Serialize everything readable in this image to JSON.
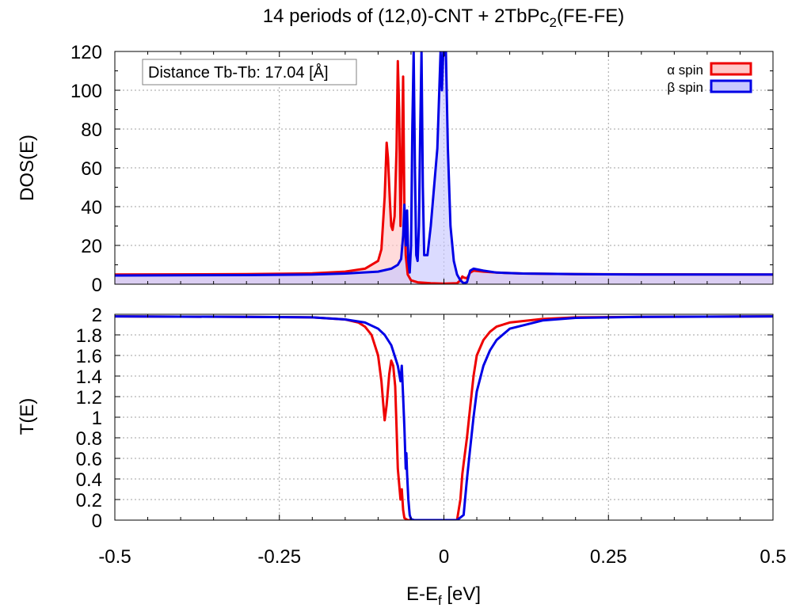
{
  "title": {
    "prefix": "14 periods of (12,0)-CNT + 2TbPc",
    "subscript": "2",
    "suffix": "(FE-FE)"
  },
  "annotation": "Distance Tb-Tb: 17.04 [Å]",
  "xlabel": {
    "main": "E-E",
    "subscript": "f",
    "unit": " [eV]"
  },
  "colors": {
    "alpha": "#ee0000",
    "alpha_fill": "#ffc8c8",
    "beta": "#0000e6",
    "beta_fill": "#c8c8ff",
    "overlap_fill": "#c8a0d2",
    "grid": "#a0a0a0"
  },
  "legend": {
    "position": "top-right",
    "alpha": "α spin",
    "beta": "β spin"
  },
  "chart_data": [
    {
      "type": "area",
      "ylabel": "DOS(E)",
      "xlim": [
        -0.5,
        0.5
      ],
      "ylim": [
        0,
        120
      ],
      "xticks": [
        -0.5,
        -0.25,
        0,
        0.25,
        0.5
      ],
      "yticks": [
        0,
        20,
        40,
        60,
        80,
        100,
        120
      ],
      "ytick_labels": [
        "0",
        "20",
        "40",
        "60",
        "80",
        "100",
        "120"
      ],
      "grid": true,
      "series": [
        {
          "name": "α spin",
          "points": [
            [
              -0.5,
              5
            ],
            [
              -0.3,
              5.2
            ],
            [
              -0.2,
              5.6
            ],
            [
              -0.15,
              6.5
            ],
            [
              -0.12,
              8
            ],
            [
              -0.1,
              12
            ],
            [
              -0.095,
              18
            ],
            [
              -0.09,
              45
            ],
            [
              -0.087,
              73
            ],
            [
              -0.085,
              65
            ],
            [
              -0.082,
              42
            ],
            [
              -0.08,
              30
            ],
            [
              -0.078,
              28
            ],
            [
              -0.075,
              35
            ],
            [
              -0.072,
              70
            ],
            [
              -0.07,
              115
            ],
            [
              -0.068,
              90
            ],
            [
              -0.066,
              30
            ],
            [
              -0.064,
              60
            ],
            [
              -0.062,
              107
            ],
            [
              -0.06,
              40
            ],
            [
              -0.058,
              15
            ],
            [
              -0.055,
              5
            ],
            [
              -0.05,
              2
            ],
            [
              -0.04,
              1
            ],
            [
              -0.02,
              0.5
            ],
            [
              0,
              0.3
            ],
            [
              0.02,
              0.5
            ],
            [
              0.025,
              2
            ],
            [
              0.028,
              4
            ],
            [
              0.03,
              3.5
            ],
            [
              0.035,
              3
            ],
            [
              0.04,
              6
            ],
            [
              0.045,
              7
            ],
            [
              0.06,
              6.5
            ],
            [
              0.08,
              6
            ],
            [
              0.12,
              5.5
            ],
            [
              0.2,
              5.2
            ],
            [
              0.3,
              5.1
            ],
            [
              0.5,
              5
            ]
          ]
        },
        {
          "name": "β spin",
          "points": [
            [
              -0.5,
              4.5
            ],
            [
              -0.3,
              4.7
            ],
            [
              -0.2,
              5
            ],
            [
              -0.15,
              5.5
            ],
            [
              -0.1,
              6.5
            ],
            [
              -0.08,
              8
            ],
            [
              -0.07,
              10
            ],
            [
              -0.065,
              13
            ],
            [
              -0.062,
              25
            ],
            [
              -0.06,
              41
            ],
            [
              -0.058,
              20
            ],
            [
              -0.056,
              38
            ],
            [
              -0.054,
              12
            ],
            [
              -0.052,
              6
            ],
            [
              -0.05,
              20
            ],
            [
              -0.048,
              80
            ],
            [
              -0.046,
              120
            ],
            [
              -0.044,
              60
            ],
            [
              -0.042,
              15
            ],
            [
              -0.04,
              12
            ],
            [
              -0.038,
              30
            ],
            [
              -0.036,
              80
            ],
            [
              -0.034,
              120
            ],
            [
              -0.032,
              50
            ],
            [
              -0.03,
              15
            ],
            [
              -0.025,
              15
            ],
            [
              -0.02,
              30
            ],
            [
              -0.01,
              70
            ],
            [
              -0.005,
              120
            ],
            [
              -0.003,
              100
            ],
            [
              -0.001,
              120
            ],
            [
              0,
              118
            ],
            [
              0.003,
              120
            ],
            [
              0.006,
              70
            ],
            [
              0.01,
              30
            ],
            [
              0.015,
              12
            ],
            [
              0.02,
              5
            ],
            [
              0.025,
              2
            ],
            [
              0.03,
              0.5
            ],
            [
              0.035,
              1
            ],
            [
              0.04,
              7
            ],
            [
              0.045,
              8
            ],
            [
              0.06,
              7
            ],
            [
              0.08,
              6
            ],
            [
              0.12,
              5.5
            ],
            [
              0.2,
              5.2
            ],
            [
              0.3,
              5
            ],
            [
              0.5,
              5
            ]
          ]
        }
      ]
    },
    {
      "type": "line",
      "ylabel": "T(E)",
      "xlabel": "E-Ef [eV]",
      "xlim": [
        -0.5,
        0.5
      ],
      "ylim": [
        0,
        2
      ],
      "xticks": [
        -0.5,
        -0.25,
        0,
        0.25,
        0.5
      ],
      "xtick_labels": [
        "-0.5",
        "-0.25",
        "0",
        "0.25",
        "0.5"
      ],
      "yticks": [
        0,
        0.2,
        0.4,
        0.6,
        0.8,
        1,
        1.2,
        1.4,
        1.6,
        1.8,
        2
      ],
      "ytick_labels": [
        "0",
        "0.2",
        "0.4",
        "0.6",
        "0.8",
        "1",
        "1.2",
        "1.4",
        "1.6",
        "1.8",
        "2"
      ],
      "grid": true,
      "series": [
        {
          "name": "α spin",
          "points": [
            [
              -0.5,
              1.98
            ],
            [
              -0.3,
              1.975
            ],
            [
              -0.2,
              1.97
            ],
            [
              -0.15,
              1.95
            ],
            [
              -0.13,
              1.92
            ],
            [
              -0.12,
              1.88
            ],
            [
              -0.11,
              1.8
            ],
            [
              -0.1,
              1.6
            ],
            [
              -0.095,
              1.35
            ],
            [
              -0.092,
              1.12
            ],
            [
              -0.09,
              0.97
            ],
            [
              -0.087,
              1.12
            ],
            [
              -0.083,
              1.42
            ],
            [
              -0.08,
              1.55
            ],
            [
              -0.077,
              1.5
            ],
            [
              -0.074,
              1.3
            ],
            [
              -0.072,
              0.9
            ],
            [
              -0.07,
              0.5
            ],
            [
              -0.068,
              0.35
            ],
            [
              -0.066,
              0.2
            ],
            [
              -0.064,
              0.3
            ],
            [
              -0.062,
              0.1
            ],
            [
              -0.06,
              0.02
            ],
            [
              -0.055,
              0
            ],
            [
              0,
              0
            ],
            [
              0.02,
              0
            ],
            [
              0.025,
              0.2
            ],
            [
              0.028,
              0.45
            ],
            [
              0.03,
              0.55
            ],
            [
              0.035,
              0.8
            ],
            [
              0.04,
              1.1
            ],
            [
              0.045,
              1.4
            ],
            [
              0.05,
              1.6
            ],
            [
              0.06,
              1.75
            ],
            [
              0.07,
              1.83
            ],
            [
              0.08,
              1.88
            ],
            [
              0.1,
              1.92
            ],
            [
              0.15,
              1.955
            ],
            [
              0.2,
              1.97
            ],
            [
              0.3,
              1.975
            ],
            [
              0.5,
              1.98
            ]
          ]
        },
        {
          "name": "β spin",
          "points": [
            [
              -0.5,
              1.98
            ],
            [
              -0.3,
              1.975
            ],
            [
              -0.2,
              1.97
            ],
            [
              -0.15,
              1.95
            ],
            [
              -0.12,
              1.92
            ],
            [
              -0.1,
              1.86
            ],
            [
              -0.09,
              1.8
            ],
            [
              -0.08,
              1.7
            ],
            [
              -0.075,
              1.6
            ],
            [
              -0.07,
              1.5
            ],
            [
              -0.066,
              1.35
            ],
            [
              -0.064,
              1.5
            ],
            [
              -0.062,
              1.2
            ],
            [
              -0.06,
              0.9
            ],
            [
              -0.058,
              0.5
            ],
            [
              -0.057,
              0.65
            ],
            [
              -0.056,
              0.45
            ],
            [
              -0.054,
              0.2
            ],
            [
              -0.052,
              0.05
            ],
            [
              -0.05,
              0.01
            ],
            [
              -0.045,
              0
            ],
            [
              0.02,
              0
            ],
            [
              0.03,
              0.05
            ],
            [
              0.035,
              0.4
            ],
            [
              0.04,
              0.7
            ],
            [
              0.045,
              1.0
            ],
            [
              0.05,
              1.25
            ],
            [
              0.06,
              1.5
            ],
            [
              0.07,
              1.65
            ],
            [
              0.08,
              1.75
            ],
            [
              0.1,
              1.86
            ],
            [
              0.15,
              1.94
            ],
            [
              0.2,
              1.965
            ],
            [
              0.3,
              1.975
            ],
            [
              0.5,
              1.98
            ]
          ]
        }
      ]
    }
  ]
}
